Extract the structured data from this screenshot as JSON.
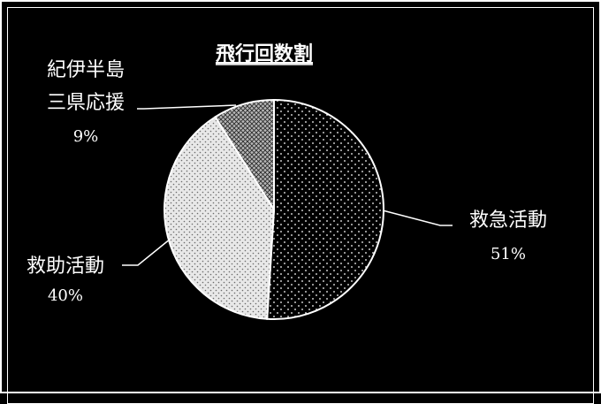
{
  "colors": {
    "background": "#000000",
    "foreground": "#ffffff",
    "dots_dark": "#000000",
    "dots_light": "#ffffff",
    "light_fill": "#dcdcdc",
    "cross_fill": "#9a9a9a"
  },
  "chart_data": {
    "type": "pie",
    "title": "飛行回数割",
    "slices": [
      {
        "label": "救急活動",
        "percent_label": "51%",
        "value": 51,
        "pattern": "dark-dots"
      },
      {
        "label": "救助活動",
        "percent_label": "40%",
        "value": 40,
        "pattern": "light-dots"
      },
      {
        "label": "紀伊半島三県応援",
        "label_lines": [
          "紀伊半島",
          "三県応援"
        ],
        "percent_label": "9%",
        "value": 9,
        "pattern": "crosshatch"
      }
    ],
    "start_angle": "12 o'clock",
    "direction": "clockwise",
    "legend": "none",
    "data_labels": "outside with leader lines"
  }
}
